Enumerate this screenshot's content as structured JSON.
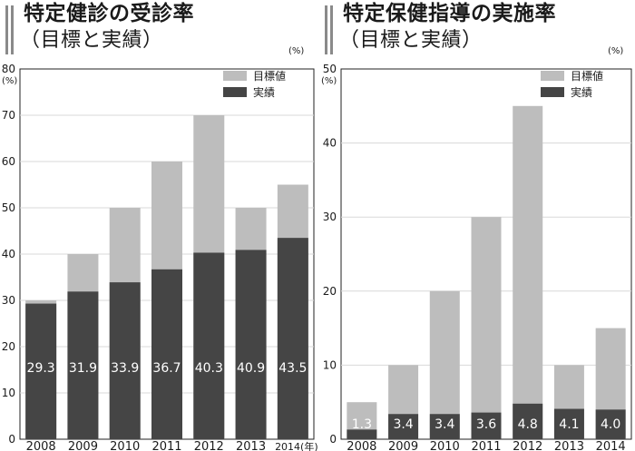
{
  "charts": [
    {
      "title": "特定健診の受診率",
      "subtitle": "（目標と実績）",
      "unit": "(%)",
      "year_suffix": "(年)",
      "colors": {
        "target": "#bdbdbd",
        "actual": "#454545",
        "grid": "#d8d8d8",
        "axis": "#222222"
      },
      "chart_data": {
        "type": "bar",
        "categories": [
          "2008",
          "2009",
          "2010",
          "2011",
          "2012",
          "2013",
          "2014"
        ],
        "series": [
          {
            "name": "目標値",
            "values": [
              30,
              40,
              50,
              60,
              70,
              50,
              55
            ]
          },
          {
            "name": "実績",
            "values": [
              29.3,
              31.9,
              33.9,
              36.7,
              40.3,
              40.9,
              43.5
            ]
          }
        ],
        "data_labels": [
          "29.3",
          "31.9",
          "33.9",
          "36.7",
          "40.3",
          "40.9",
          "43.5"
        ],
        "yticks": [
          "0",
          "10",
          "20",
          "30",
          "40",
          "50",
          "60",
          "70",
          "80"
        ],
        "ylim": [
          0,
          80
        ],
        "grid": true,
        "legend_position": "top-right"
      }
    },
    {
      "title": "特定保健指導の実施率",
      "subtitle": "（目標と実績）",
      "unit": "(%)",
      "year_suffix": "",
      "colors": {
        "target": "#bdbdbd",
        "actual": "#454545",
        "grid": "#d8d8d8",
        "axis": "#222222"
      },
      "chart_data": {
        "type": "bar",
        "categories": [
          "2008",
          "2009",
          "2010",
          "2011",
          "2012",
          "2013",
          "2014"
        ],
        "series": [
          {
            "name": "目標値",
            "values": [
              5,
              10,
              20,
              30,
              45,
              10,
              15
            ]
          },
          {
            "name": "実績",
            "values": [
              1.3,
              3.4,
              3.4,
              3.6,
              4.8,
              4.1,
              4.0
            ]
          }
        ],
        "data_labels": [
          "1.3",
          "3.4",
          "3.4",
          "3.6",
          "4.8",
          "4.1",
          "4.0"
        ],
        "yticks": [
          "0",
          "10",
          "20",
          "30",
          "40",
          "50"
        ],
        "ylim": [
          0,
          50
        ],
        "grid": true,
        "legend_position": "top-right"
      }
    }
  ]
}
